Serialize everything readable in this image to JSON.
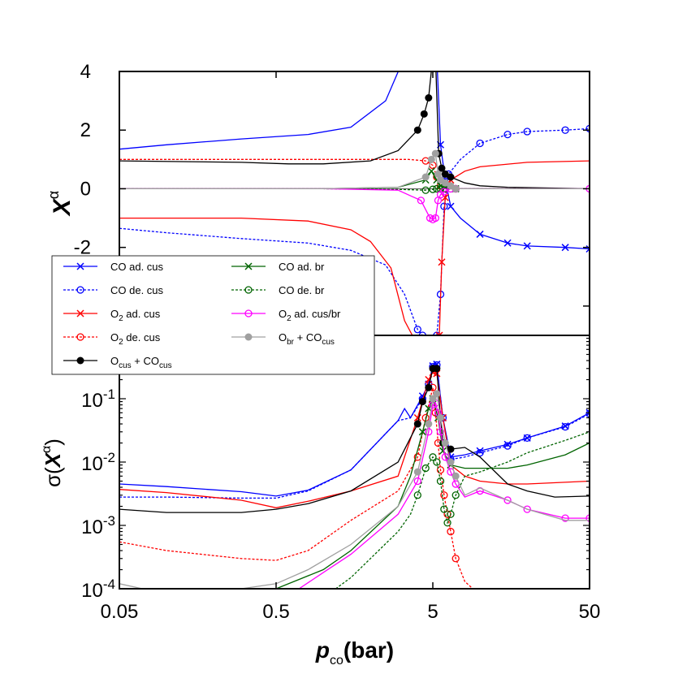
{
  "chart_data": [
    {
      "panel": "top",
      "type": "line",
      "x_scale": "log",
      "xlim": [
        0.05,
        50
      ],
      "ylim": [
        -5,
        4
      ],
      "y_ticks": [
        "-2",
        "0",
        "2",
        "4"
      ],
      "ylabel": "X",
      "ylabel_sup": "α",
      "series": [
        {
          "key": "co_ad_cus",
          "x": [
            0.05,
            0.1,
            0.3,
            0.8,
            1.5,
            2.5,
            3.3,
            5.3,
            5.6,
            6.0,
            6.5,
            7.5,
            10,
            15,
            20,
            35,
            50
          ],
          "y": [
            1.35,
            1.5,
            1.7,
            1.85,
            2.1,
            3.0,
            4.5,
            4.5,
            1.5,
            0.3,
            -0.6,
            -1.0,
            -1.55,
            -1.85,
            -1.95,
            -2.0,
            -2.05
          ]
        },
        {
          "key": "co_de_cus",
          "x": [
            0.05,
            0.1,
            0.3,
            0.8,
            1.5,
            2.5,
            3.3,
            4.0,
            4.3,
            5.3,
            5.6,
            5.9,
            6.3,
            7.5,
            10,
            15,
            20,
            35,
            50
          ],
          "y": [
            -1.35,
            -1.5,
            -1.7,
            -1.85,
            -2.1,
            -2.6,
            -3.6,
            -4.8,
            -5.0,
            -5.0,
            -3.6,
            -0.6,
            0.5,
            1.0,
            1.55,
            1.85,
            1.95,
            2.0,
            2.05
          ]
        },
        {
          "key": "o2_ad_cus",
          "x": [
            0.05,
            0.3,
            0.8,
            1.5,
            2.0,
            2.7,
            3.3,
            3.7,
            5.5,
            5.7,
            6.0,
            6.5,
            8,
            10,
            20,
            50
          ],
          "y": [
            -1.0,
            -1.0,
            -1.1,
            -1.4,
            -1.8,
            -2.7,
            -4.5,
            -5.0,
            -5.0,
            -2.5,
            -0.3,
            0.3,
            0.6,
            0.75,
            0.9,
            0.95
          ]
        },
        {
          "key": "o2_de_cus",
          "x": [
            0.05,
            0.3,
            1.5,
            3.5,
            4.5,
            5.0,
            5.3,
            5.6,
            6.0,
            7.0,
            50
          ],
          "y": [
            1.0,
            1.0,
            1.0,
            1.0,
            0.95,
            0.8,
            0.4,
            0.1,
            0.0,
            0.0,
            0.0
          ]
        },
        {
          "key": "ocus_cocus",
          "x": [
            0.05,
            0.3,
            0.6,
            1.0,
            2.0,
            3.0,
            4.0,
            4.4,
            4.7,
            5.0,
            5.2,
            5.45,
            5.7,
            6.0,
            6.5,
            8,
            10,
            15,
            50
          ],
          "y": [
            0.95,
            0.9,
            0.85,
            0.85,
            0.95,
            1.3,
            2.0,
            2.55,
            3.1,
            4.5,
            4.5,
            1.2,
            0.7,
            0.5,
            0.4,
            0.2,
            0.1,
            0.05,
            0.0
          ]
        },
        {
          "key": "co_ad_br",
          "x": [
            0.05,
            1.0,
            3.0,
            4.5,
            4.9,
            5.3,
            5.6,
            6.0,
            7.0,
            50
          ],
          "y": [
            0.0,
            0.0,
            0.05,
            0.3,
            0.6,
            0.3,
            0.1,
            0.05,
            0.0,
            0.0
          ]
        },
        {
          "key": "co_de_br",
          "x": [
            0.05,
            1.0,
            3.0,
            4.5,
            5.0,
            5.3,
            5.6,
            6.0,
            7.0,
            50
          ],
          "y": [
            0.0,
            0.0,
            -0.02,
            -0.05,
            -0.02,
            0.0,
            0.0,
            0.0,
            0.0,
            0.0
          ]
        },
        {
          "key": "o2_ad_cusbr",
          "x": [
            0.05,
            1.0,
            3.0,
            4.2,
            4.8,
            5.0,
            5.2,
            5.4,
            5.6,
            5.9,
            6.5,
            7.0,
            50
          ],
          "y": [
            0.0,
            0.0,
            -0.05,
            -0.4,
            -1.0,
            -1.05,
            -1.0,
            -0.4,
            -0.2,
            -0.1,
            0.0,
            0.0,
            0.0
          ]
        },
        {
          "key": "obr_cocus",
          "x": [
            0.05,
            1.0,
            3.0,
            4.5,
            4.9,
            5.2,
            5.4,
            5.6,
            6.0,
            6.5,
            7.0,
            50
          ],
          "y": [
            0.0,
            0.0,
            0.05,
            0.4,
            1.0,
            1.2,
            0.5,
            0.3,
            0.2,
            0.1,
            0.0,
            0.0
          ]
        }
      ]
    },
    {
      "panel": "bottom",
      "type": "line",
      "x_scale": "log",
      "y_scale": "log",
      "xlim": [
        0.05,
        50
      ],
      "ylim": [
        0.0001,
        1
      ],
      "x_ticks": [
        "0.05",
        "0.5",
        "5",
        "50"
      ],
      "y_ticks": [
        {
          "base": "10",
          "exp": "-4"
        },
        {
          "base": "10",
          "exp": "-3"
        },
        {
          "base": "10",
          "exp": "-2"
        },
        {
          "base": "10",
          "exp": "-1"
        }
      ],
      "xlabel": "p",
      "xlabel_sub": "co",
      "xlabel_unit": "(bar)",
      "ylabel": "σ(",
      "ylabel_var": "X",
      "ylabel_sup": "α",
      "ylabel_close": ")",
      "series": [
        {
          "key": "co_ad_cus",
          "x": [
            0.05,
            0.1,
            0.3,
            0.5,
            0.8,
            1.5,
            3.0,
            3.3,
            3.6,
            4.3,
            4.7,
            5.0,
            5.3,
            5.8,
            6.5,
            8,
            10,
            15,
            20,
            35,
            50
          ],
          "y": [
            0.0045,
            0.0041,
            0.0034,
            0.0029,
            0.0036,
            0.0075,
            0.045,
            0.07,
            0.05,
            0.11,
            0.17,
            0.33,
            0.35,
            0.05,
            0.012,
            0.013,
            0.015,
            0.019,
            0.024,
            0.037,
            0.06
          ]
        },
        {
          "key": "co_de_cus",
          "x": [
            0.05,
            0.1,
            0.3,
            0.5,
            0.8,
            1.5,
            3.0,
            3.6,
            4.3,
            4.7,
            5.0,
            5.3,
            5.8,
            6.5,
            8,
            10,
            15,
            20,
            35,
            50
          ],
          "y": [
            0.0028,
            0.0028,
            0.0027,
            0.0027,
            0.0035,
            0.0075,
            0.045,
            0.05,
            0.1,
            0.17,
            0.32,
            0.34,
            0.05,
            0.011,
            0.012,
            0.014,
            0.018,
            0.024,
            0.036,
            0.058
          ]
        },
        {
          "key": "o2_ad_cus",
          "x": [
            0.05,
            0.1,
            0.3,
            0.5,
            0.8,
            1.5,
            3.0,
            4.0,
            4.7,
            5.0,
            5.3,
            5.8,
            6.5,
            8,
            10,
            15,
            20,
            50
          ],
          "y": [
            0.0037,
            0.0033,
            0.0025,
            0.0019,
            0.0024,
            0.0035,
            0.006,
            0.05,
            0.2,
            0.26,
            0.25,
            0.05,
            0.009,
            0.006,
            0.005,
            0.0045,
            0.0045,
            0.005
          ]
        },
        {
          "key": "o2_de_cus",
          "x": [
            0.05,
            0.1,
            0.3,
            0.5,
            0.8,
            1.5,
            3.0,
            4.0,
            4.5,
            5.0,
            5.2,
            5.4,
            5.6,
            5.9,
            6.2,
            6.5,
            7.0,
            8.0,
            9.0
          ],
          "y": [
            0.00055,
            0.0004,
            0.0003,
            0.00028,
            0.0004,
            0.0012,
            0.0035,
            0.012,
            0.05,
            0.15,
            0.06,
            0.02,
            0.0075,
            0.003,
            0.0015,
            0.0008,
            0.0003,
            0.00013,
            0.0001
          ]
        },
        {
          "key": "ocus_cocus",
          "x": [
            0.05,
            0.1,
            0.3,
            0.5,
            0.8,
            1.5,
            3.0,
            4.0,
            4.3,
            4.7,
            5.0,
            5.3,
            5.6,
            5.8,
            6.5,
            8,
            10,
            15,
            20,
            30,
            50
          ],
          "y": [
            0.0018,
            0.0016,
            0.0016,
            0.0018,
            0.0022,
            0.0035,
            0.01,
            0.04,
            0.09,
            0.15,
            0.3,
            0.3,
            0.05,
            0.02,
            0.016,
            0.017,
            0.012,
            0.0045,
            0.0035,
            0.0028,
            0.0029
          ]
        },
        {
          "key": "co_ad_br",
          "x": [
            0.5,
            1.0,
            1.5,
            3.0,
            3.6,
            4.3,
            4.7,
            5.0,
            5.4,
            5.8,
            6.5,
            8,
            10,
            15,
            20,
            35,
            50
          ],
          "y": [
            0.0001,
            0.0002,
            0.0004,
            0.002,
            0.006,
            0.03,
            0.07,
            0.1,
            0.05,
            0.015,
            0.009,
            0.008,
            0.008,
            0.008,
            0.009,
            0.013,
            0.02
          ]
        },
        {
          "key": "co_de_br",
          "x": [
            1.2,
            1.5,
            2.0,
            3.0,
            3.6,
            4.0,
            4.5,
            5.0,
            5.3,
            5.6,
            5.9,
            6.2,
            6.5,
            7.0,
            8.0,
            10,
            15,
            20,
            35,
            50
          ],
          "y": [
            0.0001,
            0.00015,
            0.0003,
            0.0008,
            0.0015,
            0.003,
            0.008,
            0.012,
            0.01,
            0.005,
            0.0018,
            0.0011,
            0.0015,
            0.003,
            0.006,
            0.007,
            0.01,
            0.014,
            0.022,
            0.03
          ]
        },
        {
          "key": "o2_ad_cusbr",
          "x": [
            0.7,
            1.0,
            1.5,
            3.0,
            4.0,
            4.7,
            5.0,
            5.2,
            5.4,
            5.6,
            6.0,
            6.5,
            7.0,
            8.0,
            10,
            15,
            20,
            35,
            50
          ],
          "y": [
            0.0001,
            0.00018,
            0.00035,
            0.0015,
            0.005,
            0.03,
            0.08,
            0.085,
            0.06,
            0.03,
            0.012,
            0.007,
            0.0045,
            0.0028,
            0.0035,
            0.0025,
            0.0018,
            0.0013,
            0.0013
          ]
        },
        {
          "key": "obr_cocus",
          "x": [
            0.05,
            0.07,
            0.1,
            0.2,
            0.3,
            0.5,
            0.8,
            1.5,
            3.0,
            4.0,
            4.7,
            5.0,
            5.3,
            5.6,
            6.0,
            6.5,
            7.0,
            8.0,
            10,
            15,
            20,
            35,
            50
          ],
          "y": [
            0.00012,
            0.0001,
            0.0001,
            0.0001,
            0.0001,
            0.00012,
            0.0002,
            0.0005,
            0.002,
            0.007,
            0.04,
            0.1,
            0.12,
            0.05,
            0.02,
            0.01,
            0.006,
            0.003,
            0.0039,
            0.0025,
            0.0018,
            0.0012,
            0.0012
          ]
        }
      ]
    }
  ],
  "legend": [
    {
      "key": "co_ad_cus",
      "label": "CO ad. cus",
      "color": "#0000ff",
      "dash": false,
      "marker": "x"
    },
    {
      "key": "co_de_cus",
      "label": "CO de. cus",
      "color": "#0000ff",
      "dash": true,
      "marker": "o"
    },
    {
      "key": "o2_ad_cus",
      "main": "O",
      "sub": "2",
      "rest": " ad. cus",
      "color": "#ff0000",
      "dash": false,
      "marker": "x"
    },
    {
      "key": "o2_de_cus",
      "main": "O",
      "sub": "2",
      "rest": " de. cus",
      "color": "#ff0000",
      "dash": true,
      "marker": "o"
    },
    {
      "key": "ocus_cocus",
      "main": "O",
      "sub": "cus",
      "rest": " + CO",
      "sub2": "cus",
      "color": "#000000",
      "dash": false,
      "marker": "dot"
    },
    {
      "key": "co_ad_br",
      "label": "CO ad. br",
      "color": "#006400",
      "dash": false,
      "marker": "x"
    },
    {
      "key": "co_de_br",
      "label": "CO de. br",
      "color": "#006400",
      "dash": true,
      "marker": "o"
    },
    {
      "key": "o2_ad_cusbr",
      "main": "O",
      "sub": "2",
      "rest": " ad. cus/br",
      "color": "#ff00ff",
      "dash": false,
      "marker": "o"
    },
    {
      "key": "obr_cocus",
      "main": "O",
      "sub": "br",
      "rest": " + CO",
      "sub2": "cus",
      "color": "#a0a0a0",
      "dash": false,
      "marker": "dot"
    }
  ]
}
